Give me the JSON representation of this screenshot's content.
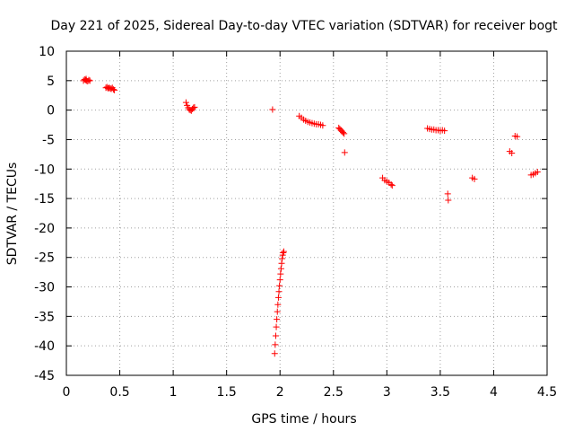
{
  "chart_data": {
    "type": "scatter",
    "title": "Day 221 of 2025, Sidereal Day-to-day VTEC variation (SDTVAR) for receiver bogt",
    "xlabel": "GPS time / hours",
    "ylabel": "SDTVAR / TECUs",
    "xlim": [
      0,
      4.5
    ],
    "ylim": [
      -45,
      10
    ],
    "xticks": [
      0,
      0.5,
      1,
      1.5,
      2,
      2.5,
      3,
      3.5,
      4,
      4.5
    ],
    "xtick_labels": [
      "0",
      "0.5",
      "1",
      "1.5",
      "2",
      "2.5",
      "3",
      "3.5",
      "4",
      "4.5"
    ],
    "yticks": [
      10,
      5,
      0,
      -5,
      -10,
      -15,
      -20,
      -25,
      -30,
      -35,
      -40,
      -45
    ],
    "ytick_labels": [
      "10",
      "5",
      "0",
      "-5",
      "-10",
      "-15",
      "-20",
      "-25",
      "-30",
      "-35",
      "-40",
      "-45"
    ],
    "grid": true,
    "marker": "+",
    "color": "#ff0000",
    "series": [
      {
        "name": "SDTVAR",
        "x": [
          0.16,
          0.17,
          0.18,
          0.185,
          0.19,
          0.2,
          0.21,
          0.22,
          0.37,
          0.38,
          0.39,
          0.4,
          0.41,
          0.42,
          0.43,
          0.44,
          0.45,
          1.12,
          1.13,
          1.14,
          1.15,
          1.16,
          1.17,
          1.18,
          1.19,
          1.2,
          1.93,
          1.95,
          1.955,
          1.96,
          1.965,
          1.97,
          1.975,
          1.98,
          1.985,
          1.99,
          1.995,
          2.0,
          2.005,
          2.01,
          2.015,
          2.02,
          2.025,
          2.03,
          2.035,
          2.18,
          2.2,
          2.22,
          2.24,
          2.26,
          2.28,
          2.3,
          2.32,
          2.34,
          2.36,
          2.38,
          2.4,
          2.55,
          2.56,
          2.57,
          2.58,
          2.59,
          2.6,
          2.605,
          2.96,
          2.98,
          3.0,
          3.02,
          3.04,
          3.05,
          3.38,
          3.4,
          3.42,
          3.44,
          3.46,
          3.48,
          3.5,
          3.52,
          3.54,
          3.57,
          3.575,
          3.8,
          3.82,
          4.15,
          4.17,
          4.2,
          4.22,
          4.35,
          4.37,
          4.39,
          4.41
        ],
        "y": [
          5.0,
          5.2,
          5.1,
          5.3,
          5.0,
          4.9,
          5.1,
          5.0,
          3.8,
          3.9,
          3.7,
          3.8,
          3.7,
          3.6,
          3.8,
          3.5,
          3.4,
          1.3,
          0.8,
          0.4,
          0.1,
          0.0,
          -0.1,
          0.2,
          0.4,
          0.5,
          0.1,
          -41.3,
          -39.8,
          -38.3,
          -36.8,
          -35.5,
          -34.2,
          -33.0,
          -31.8,
          -30.8,
          -29.8,
          -28.8,
          -27.8,
          -26.9,
          -26.0,
          -25.2,
          -24.6,
          -24.2,
          -24.0,
          -1.0,
          -1.3,
          -1.6,
          -1.8,
          -2.0,
          -2.1,
          -2.2,
          -2.3,
          -2.4,
          -2.4,
          -2.5,
          -2.6,
          -3.0,
          -3.2,
          -3.4,
          -3.6,
          -3.8,
          -4.0,
          -7.2,
          -11.5,
          -11.9,
          -12.1,
          -12.3,
          -12.6,
          -12.8,
          -3.1,
          -3.2,
          -3.3,
          -3.3,
          -3.4,
          -3.4,
          -3.5,
          -3.4,
          -3.5,
          -14.2,
          -15.3,
          -11.5,
          -11.7,
          -7.0,
          -7.3,
          -4.4,
          -4.5,
          -11.0,
          -10.9,
          -10.7,
          -10.5
        ]
      }
    ]
  }
}
